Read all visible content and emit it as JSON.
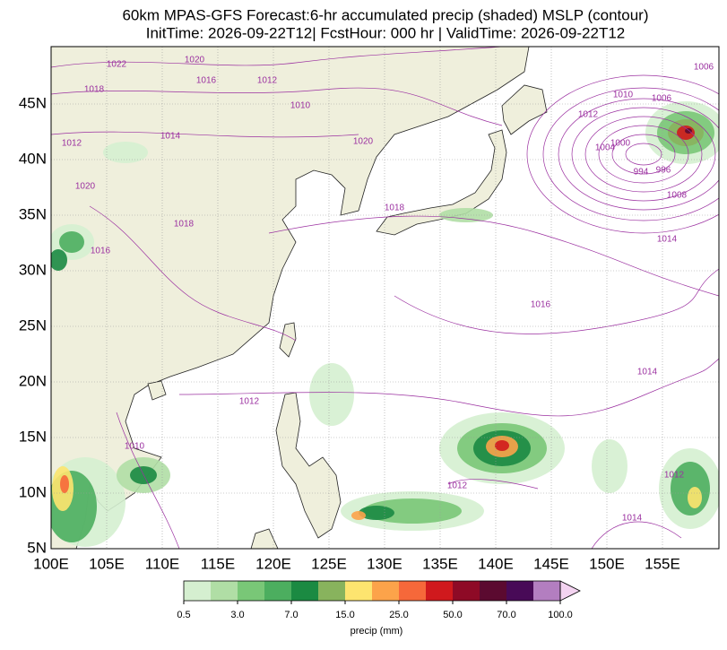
{
  "title": "60km MPAS-GFS Forecast:6-hr accumulated precip (shaded) MSLP (contour)",
  "subtitle": "InitTime: 2026-09-22T12| FcstHour: 000 hr | ValidTime: 2026-09-22T12",
  "map": {
    "xlim": [
      100,
      160
    ],
    "ylim": [
      5,
      50.5
    ],
    "grid": true,
    "land_color": "#efefdc",
    "ocean_color": "#ffffff",
    "contour_color": "#9b30a0",
    "xticks": [
      {
        "value": 100,
        "label": "100E"
      },
      {
        "value": 105,
        "label": "105E"
      },
      {
        "value": 110,
        "label": "110E"
      },
      {
        "value": 115,
        "label": "115E"
      },
      {
        "value": 120,
        "label": "120E"
      },
      {
        "value": 125,
        "label": "125E"
      },
      {
        "value": 130,
        "label": "130E"
      },
      {
        "value": 135,
        "label": "135E"
      },
      {
        "value": 140,
        "label": "140E"
      },
      {
        "value": 145,
        "label": "145E"
      },
      {
        "value": 150,
        "label": "150E"
      },
      {
        "value": 155,
        "label": "155E"
      }
    ],
    "yticks": [
      {
        "value": 5,
        "label": "5N"
      },
      {
        "value": 10,
        "label": "10N"
      },
      {
        "value": 15,
        "label": "15N"
      },
      {
        "value": 20,
        "label": "20N"
      },
      {
        "value": 25,
        "label": "25N"
      },
      {
        "value": 30,
        "label": "30N"
      },
      {
        "value": 35,
        "label": "35N"
      },
      {
        "value": 40,
        "label": "40N"
      },
      {
        "value": 45,
        "label": "45N"
      }
    ]
  },
  "contour_labels": [
    "1022",
    "1020",
    "1016",
    "1012",
    "1018",
    "1010",
    "1014",
    "1020",
    "1012",
    "1020",
    "1018",
    "1016",
    "1018",
    "1012",
    "1010",
    "1006",
    "1006",
    "1004",
    "1000",
    "996",
    "994",
    "1008",
    "1014",
    "1016",
    "1014",
    "1012",
    "1010",
    "1012",
    "1014",
    "1012"
  ],
  "colorbar": {
    "label": "precip (mm)",
    "colors": [
      "#d5efd0",
      "#b0dea5",
      "#79c777",
      "#4cae5f",
      "#1b8a42",
      "#88b35d",
      "#fde46f",
      "#fca34a",
      "#f6683a",
      "#d0191d",
      "#8e0a26",
      "#5b0a30",
      "#480a57",
      "#b37ec0"
    ],
    "extend_color": "#f3d3f0",
    "ticks": [
      0.5,
      {
        "value": 3,
        "label": "3.0"
      },
      {
        "value": 7,
        "label": "7.0"
      },
      {
        "value": 15,
        "label": "15.0"
      },
      {
        "value": 25,
        "label": "25.0"
      },
      {
        "value": 50,
        "label": "50.0"
      },
      {
        "value": 70,
        "label": "70.0"
      },
      {
        "value": 100,
        "label": "100.0"
      }
    ]
  }
}
